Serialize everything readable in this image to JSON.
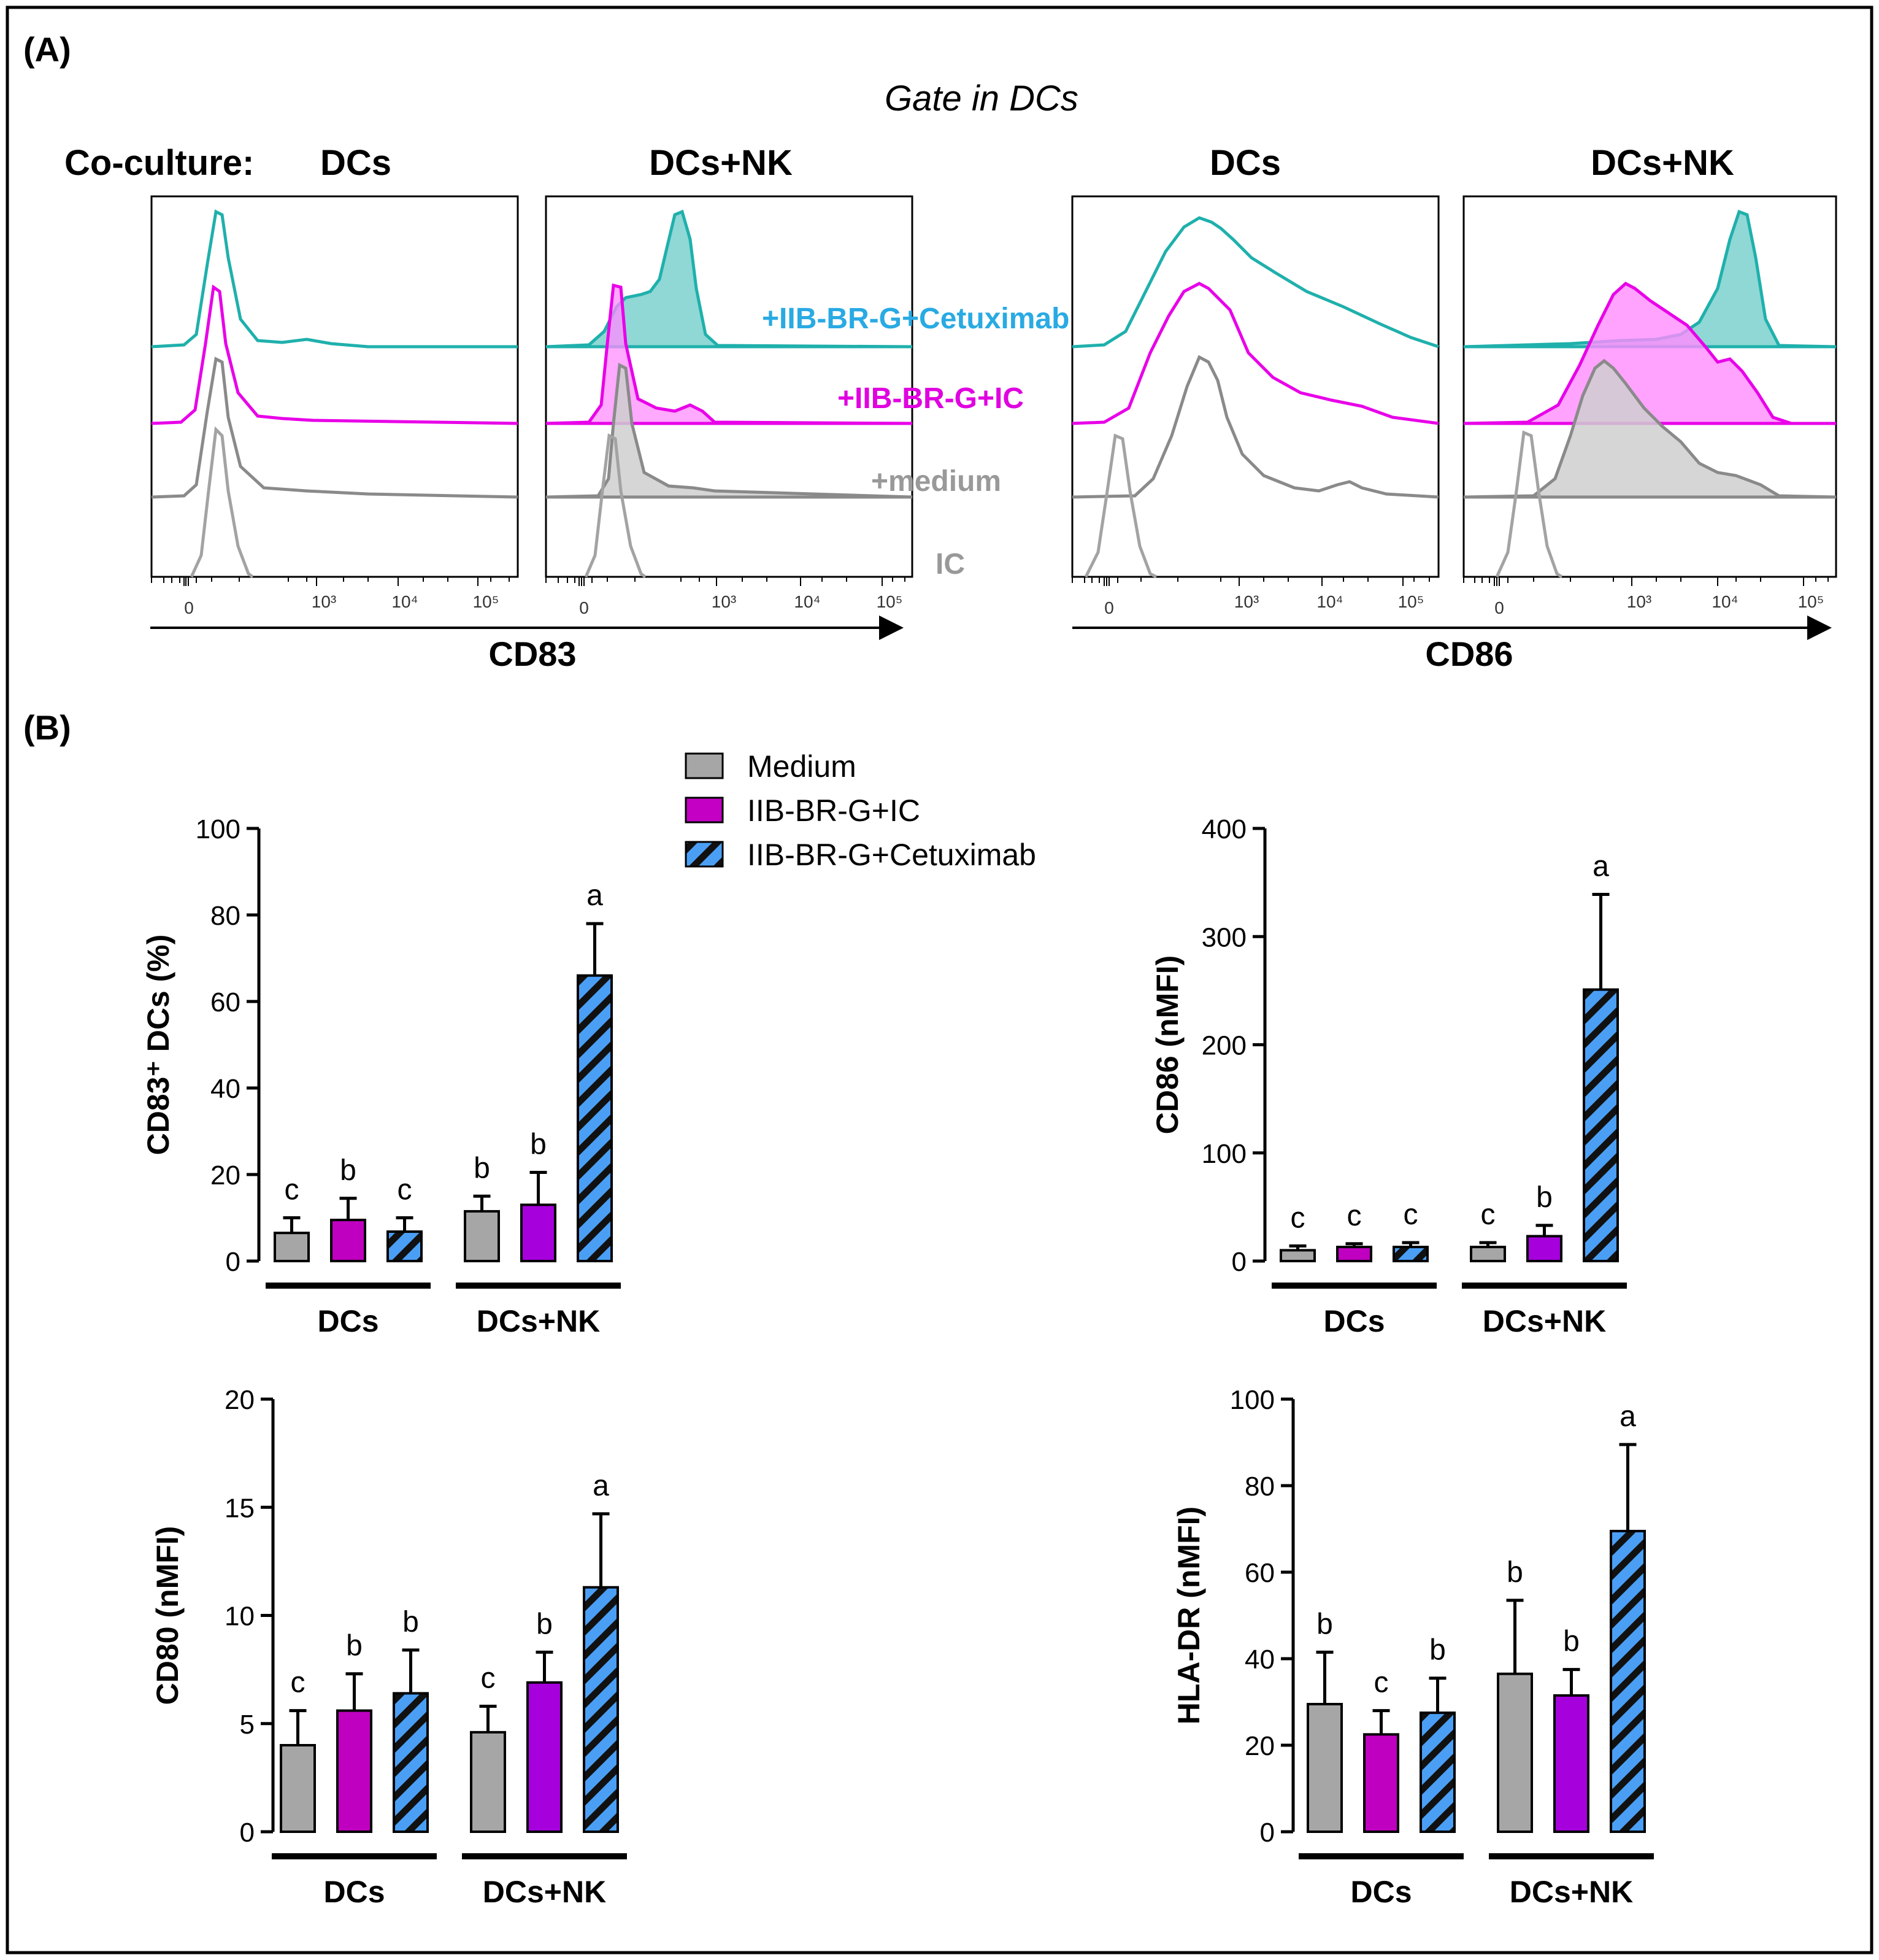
{
  "figure": {
    "panel_a_label": "(A)",
    "panel_b_label": "(B)",
    "gate_label": "Gate in DCs",
    "coculture_label": "Co-culture:"
  },
  "flow": {
    "tick_labels": [
      "0",
      "10³",
      "10⁴",
      "10⁵"
    ],
    "histogram_labels": {
      "cetuximab": "+IIB-BR-G+Cetuximab",
      "ic_treat": "+IIB-BR-G+IC",
      "medium": "+medium",
      "isotype": "IC"
    },
    "axes": [
      {
        "label": "CD83",
        "panels": [
          "DCs",
          "DCs+NK"
        ]
      },
      {
        "label": "CD86",
        "panels": [
          "DCs",
          "DCs+NK"
        ]
      }
    ]
  },
  "legend": {
    "items": [
      {
        "label": "Medium",
        "color": "#a6a6a6",
        "pattern": "solid"
      },
      {
        "label": "IIB-BR-G+IC",
        "color": "#c400c4",
        "pattern": "solid"
      },
      {
        "label": "IIB-BR-G+Cetuximab",
        "color": "#4a9ff5",
        "pattern": "hatch"
      }
    ]
  },
  "colors": {
    "cetuximab_line": "#1fb0ac",
    "cetuximab_fill": "#8fd8d5",
    "ic_line": "#e800e8",
    "ic_fill": "#ff8cff",
    "medium_line": "#8a8a8a",
    "medium_fill": "#cfcfcf",
    "isotype_line": "#a3a3a3",
    "cetuximab_text": "#29aae3",
    "ic_text": "#e000e0",
    "medium_text": "#999999"
  },
  "chart_data": [
    {
      "type": "bar",
      "id": "cd83",
      "ylabel": "CD83⁺ DCs (%)",
      "ylim": [
        0,
        100
      ],
      "yticks": [
        0,
        20,
        40,
        60,
        80,
        100
      ],
      "groups": [
        "DCs",
        "DCs+NK"
      ],
      "series": [
        {
          "name": "Medium",
          "values": [
            6.5,
            11.5
          ],
          "errors": [
            3.5,
            3.5
          ],
          "letters": [
            "c",
            "b"
          ],
          "colors": [
            "#a6a6a6",
            "#a6a6a6"
          ]
        },
        {
          "name": "IIB-BR-G+IC",
          "values": [
            9.5,
            13
          ],
          "errors": [
            5,
            7.5
          ],
          "letters": [
            "b",
            "b"
          ],
          "colors": [
            "#c000c0",
            "#a600dd"
          ]
        },
        {
          "name": "IIB-BR-G+Cetuximab",
          "values": [
            6.8,
            66
          ],
          "errors": [
            3.2,
            12
          ],
          "letters": [
            "c",
            "a"
          ],
          "colors": [
            "#4a9ff5",
            "#4a9ff5"
          ]
        }
      ]
    },
    {
      "type": "bar",
      "id": "cd86",
      "ylabel": "CD86 (nMFI)",
      "ylim": [
        0,
        400
      ],
      "yticks": [
        0,
        100,
        200,
        300,
        400
      ],
      "groups": [
        "DCs",
        "DCs+NK"
      ],
      "series": [
        {
          "name": "Medium",
          "values": [
            10,
            13
          ],
          "errors": [
            4,
            4
          ],
          "letters": [
            "c",
            "c"
          ],
          "colors": [
            "#a6a6a6",
            "#a6a6a6"
          ]
        },
        {
          "name": "IIB-BR-G+IC",
          "values": [
            13,
            23
          ],
          "errors": [
            3,
            10
          ],
          "letters": [
            "c",
            "b"
          ],
          "colors": [
            "#c000c0",
            "#a600dd"
          ]
        },
        {
          "name": "IIB-BR-G+Cetuximab",
          "values": [
            13,
            251
          ],
          "errors": [
            4,
            88
          ],
          "letters": [
            "c",
            "a"
          ],
          "colors": [
            "#4a9ff5",
            "#4a9ff5"
          ]
        }
      ]
    },
    {
      "type": "bar",
      "id": "cd80",
      "ylabel": "CD80 (nMFI)",
      "ylim": [
        0,
        20
      ],
      "yticks": [
        0,
        5,
        10,
        15,
        20
      ],
      "groups": [
        "DCs",
        "DCs+NK"
      ],
      "series": [
        {
          "name": "Medium",
          "values": [
            4.0,
            4.6
          ],
          "errors": [
            1.6,
            1.2
          ],
          "letters": [
            "c",
            "c"
          ],
          "colors": [
            "#a6a6a6",
            "#a6a6a6"
          ]
        },
        {
          "name": "IIB-BR-G+IC",
          "values": [
            5.6,
            6.9
          ],
          "errors": [
            1.7,
            1.4
          ],
          "letters": [
            "b",
            "b"
          ],
          "colors": [
            "#c000c0",
            "#a600dd"
          ]
        },
        {
          "name": "IIB-BR-G+Cetuximab",
          "values": [
            6.4,
            11.3
          ],
          "errors": [
            2.0,
            3.4
          ],
          "letters": [
            "b",
            "a"
          ],
          "colors": [
            "#4a9ff5",
            "#4a9ff5"
          ]
        }
      ]
    },
    {
      "type": "bar",
      "id": "hladr",
      "ylabel": "HLA-DR (nMFI)",
      "ylim": [
        0,
        100
      ],
      "yticks": [
        0,
        20,
        40,
        60,
        80,
        100
      ],
      "groups": [
        "DCs",
        "DCs+NK"
      ],
      "series": [
        {
          "name": "Medium",
          "values": [
            29.5,
            36.5
          ],
          "errors": [
            12,
            17
          ],
          "letters": [
            "b",
            "b"
          ],
          "colors": [
            "#a6a6a6",
            "#a6a6a6"
          ]
        },
        {
          "name": "IIB-BR-G+IC",
          "values": [
            22.5,
            31.5
          ],
          "errors": [
            5.5,
            6
          ],
          "letters": [
            "c",
            "b"
          ],
          "colors": [
            "#c000c0",
            "#a600dd"
          ]
        },
        {
          "name": "IIB-BR-G+Cetuximab",
          "values": [
            27.5,
            69.5
          ],
          "errors": [
            8,
            20
          ],
          "letters": [
            "b",
            "a"
          ],
          "colors": [
            "#4a9ff5",
            "#4a9ff5"
          ]
        }
      ]
    }
  ]
}
